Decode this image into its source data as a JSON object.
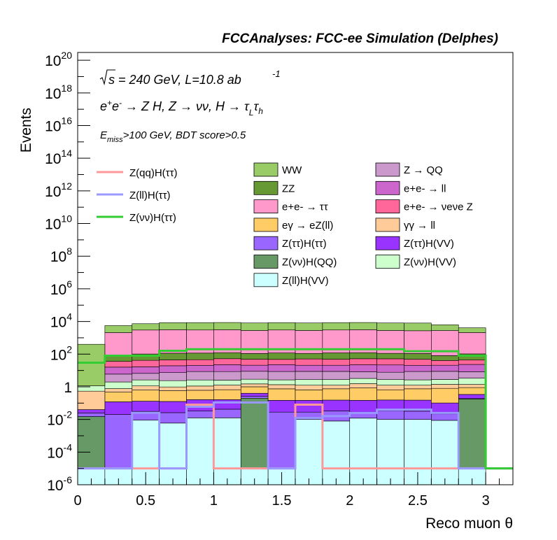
{
  "chart_data": {
    "type": "stacked-histogram",
    "title": "FCCAnalyses: FCC-ee Simulation (Delphes)",
    "xlabel": "Reco muon θ",
    "ylabel": "Events",
    "xlim": [
      0,
      3.2
    ],
    "ylim": [
      1e-06,
      3e+20
    ],
    "yscale": "log",
    "grid": false,
    "legend_position": "top",
    "x_ticks": [
      "0",
      "0.5",
      "1",
      "1.5",
      "2",
      "2.5",
      "3"
    ],
    "y_ticks": [
      "10<sup>-6</sup>",
      "10<sup>-4</sup>",
      "10<sup>-2</sup>",
      "1",
      "10<sup>2</sup>",
      "10<sup>4</sup>",
      "10<sup>6</sup>",
      "10<sup>8</sup>",
      "10<sup>10</sup>",
      "10<sup>12</sup>",
      "10<sup>14</sup>",
      "10<sup>16</sup>",
      "10<sup>18</sup>",
      "10<sup>20</sup>"
    ],
    "annotations": [
      "√s = 240 GeV, L=10.8 ab -1",
      "e+e- → Z H, Z → νν, H → τLτh",
      "Emiss>100 GeV, BDT score>0.5"
    ],
    "bin_edges": [
      0,
      0.2,
      0.4,
      0.6,
      0.8,
      1.0,
      1.2,
      1.4,
      1.6,
      1.8,
      2.0,
      2.2,
      2.4,
      2.6,
      2.8,
      3.0,
      3.2
    ],
    "stack": [
      {
        "name": "Z(ll)H(VV)",
        "color": "#ccffff",
        "values": [
          1e-05,
          1e-05,
          0.009,
          0.006,
          0.0125,
          0.0125,
          1e-05,
          1e-05,
          0.01,
          0.008,
          0.012,
          0.01,
          0.01,
          0.0088,
          1e-05,
          0
        ]
      },
      {
        "name": "Z(νν)H(QQ)",
        "color": "#669966",
        "values": [
          0.015,
          0,
          0,
          0,
          0,
          0,
          0.2,
          0,
          0,
          0,
          0,
          0,
          0,
          0,
          0.18,
          0
        ]
      },
      {
        "name": "Z(ττ)H(ττ)",
        "color": "#9966ff",
        "values": [
          0.01,
          0.02,
          0.022,
          0.02,
          0.02,
          0.03,
          0.06,
          0.028,
          0.018,
          0.025,
          0.016,
          0.025,
          0.022,
          0.013,
          0.01,
          0
        ]
      },
      {
        "name": "Z(ττ)H(VV)",
        "color": "#9933ff",
        "values": [
          0.015,
          0.1,
          0.1,
          0.1,
          0.13,
          0.12,
          0.14,
          0.12,
          0.12,
          0.12,
          0.12,
          0.12,
          0.12,
          0.08,
          0.15,
          0
        ]
      },
      {
        "name": "eγ → eZ(ll)",
        "color": "#ffcc66",
        "values": [
          0,
          0.35,
          0.5,
          0.45,
          0.45,
          0.5,
          0.6,
          0.6,
          0.5,
          0.6,
          0.7,
          0.5,
          0.6,
          0.7,
          0.55,
          0
        ]
      },
      {
        "name": "γγ → ll",
        "color": "#ffcc99",
        "values": [
          0.5,
          0.3,
          0.5,
          0.4,
          0.5,
          0.6,
          0.5,
          0.6,
          0.6,
          0.5,
          0.7,
          0.6,
          0.5,
          0.6,
          0.5,
          0
        ]
      },
      {
        "name": "Z(νν)H(VV)",
        "color": "#ccffcc",
        "values": [
          0.6,
          1.2,
          1.5,
          1.4,
          1.5,
          1.3,
          1.4,
          1.3,
          1.5,
          1.5,
          1.7,
          1.5,
          1.4,
          1.4,
          2.0,
          0
        ]
      },
      {
        "name": "Z → QQ",
        "color": "#cc99cc",
        "values": [
          0,
          4,
          4,
          5,
          6,
          6,
          6,
          6,
          6,
          6,
          5,
          5,
          6,
          6,
          5,
          0
        ]
      },
      {
        "name": "e+e- → ll",
        "color": "#cc66cc",
        "values": [
          0,
          10,
          10,
          12,
          12,
          14,
          12,
          14,
          12,
          12,
          14,
          14,
          12,
          12,
          15,
          0
        ]
      },
      {
        "name": "e+e- → νeνe Z",
        "color": "#ff6699",
        "values": [
          0,
          20,
          25,
          25,
          25,
          30,
          28,
          25,
          30,
          28,
          30,
          30,
          28,
          20,
          20,
          0
        ]
      },
      {
        "name": "ZZ",
        "color": "#669933",
        "values": [
          0,
          50,
          60,
          70,
          70,
          70,
          60,
          70,
          60,
          70,
          70,
          60,
          60,
          40,
          60,
          0
        ]
      },
      {
        "name": "e+e- → ττ",
        "color": "#ff99cc",
        "values": [
          0,
          2000,
          2900,
          3000,
          2900,
          3000,
          2700,
          2900,
          2700,
          2900,
          3000,
          2700,
          2600,
          2700,
          2000,
          0
        ]
      },
      {
        "name": "WW",
        "color": "#99cc66",
        "values": [
          400,
          3500,
          4300,
          5300,
          5500,
          5500,
          5300,
          5500,
          5300,
          5500,
          5500,
          5300,
          5300,
          3500,
          2000,
          0
        ]
      }
    ],
    "signals": [
      {
        "name": "Z(qq)H(ττ)",
        "color": "#ff9999",
        "values": [
          1e-05,
          1e-05,
          1e-05,
          1e-05,
          0.08,
          1e-05,
          1e-05,
          1e-05,
          0.08,
          1e-05,
          1e-05,
          1e-05,
          1e-05,
          1e-05,
          1e-05,
          1e-05
        ]
      },
      {
        "name": "Z(ll)H(ττ)",
        "color": "#9999ff",
        "values": [
          1e-05,
          1e-05,
          0.0255,
          1e-05,
          0.06,
          0.11,
          0.11,
          1e-05,
          0.012,
          0.016,
          0.025,
          0.04,
          0.04,
          0.025,
          1e-05,
          1e-05
        ]
      },
      {
        "name": "Z(νν)H(ττ)",
        "color": "#33cc33",
        "values": [
          30,
          80,
          80,
          160,
          200,
          200,
          200,
          200,
          200,
          200,
          200,
          200,
          150,
          150,
          80,
          1e-05
        ]
      }
    ],
    "legend_left": [
      "Z(qq)H(ττ)",
      "Z(ll)H(ττ)",
      "Z(νν)H(ττ)"
    ],
    "legend_mid": [
      {
        "label": "WW",
        "color": "#99cc66"
      },
      {
        "label": "ZZ",
        "color": "#669933"
      },
      {
        "label": "e+e- → ττ",
        "color": "#ff99cc"
      },
      {
        "label": "eγ → eZ(ll)",
        "color": "#ffcc66"
      },
      {
        "label": "Z(ττ)H(ττ)",
        "color": "#9966ff"
      },
      {
        "label": "Z(νν)H(QQ)",
        "color": "#669966"
      },
      {
        "label": "Z(ll)H(VV)",
        "color": "#ccffff"
      }
    ],
    "legend_right": [
      {
        "label": "Z → QQ",
        "color": "#cc99cc"
      },
      {
        "label": "e+e- → ll",
        "color": "#cc66cc"
      },
      {
        "label": "e+e- → νeνe Z",
        "color": "#ff6699"
      },
      {
        "label": "γγ → ll",
        "color": "#ffcc99"
      },
      {
        "label": "Z(ττ)H(VV)",
        "color": "#9933ff"
      },
      {
        "label": "Z(νν)H(VV)",
        "color": "#ccffcc"
      }
    ]
  }
}
